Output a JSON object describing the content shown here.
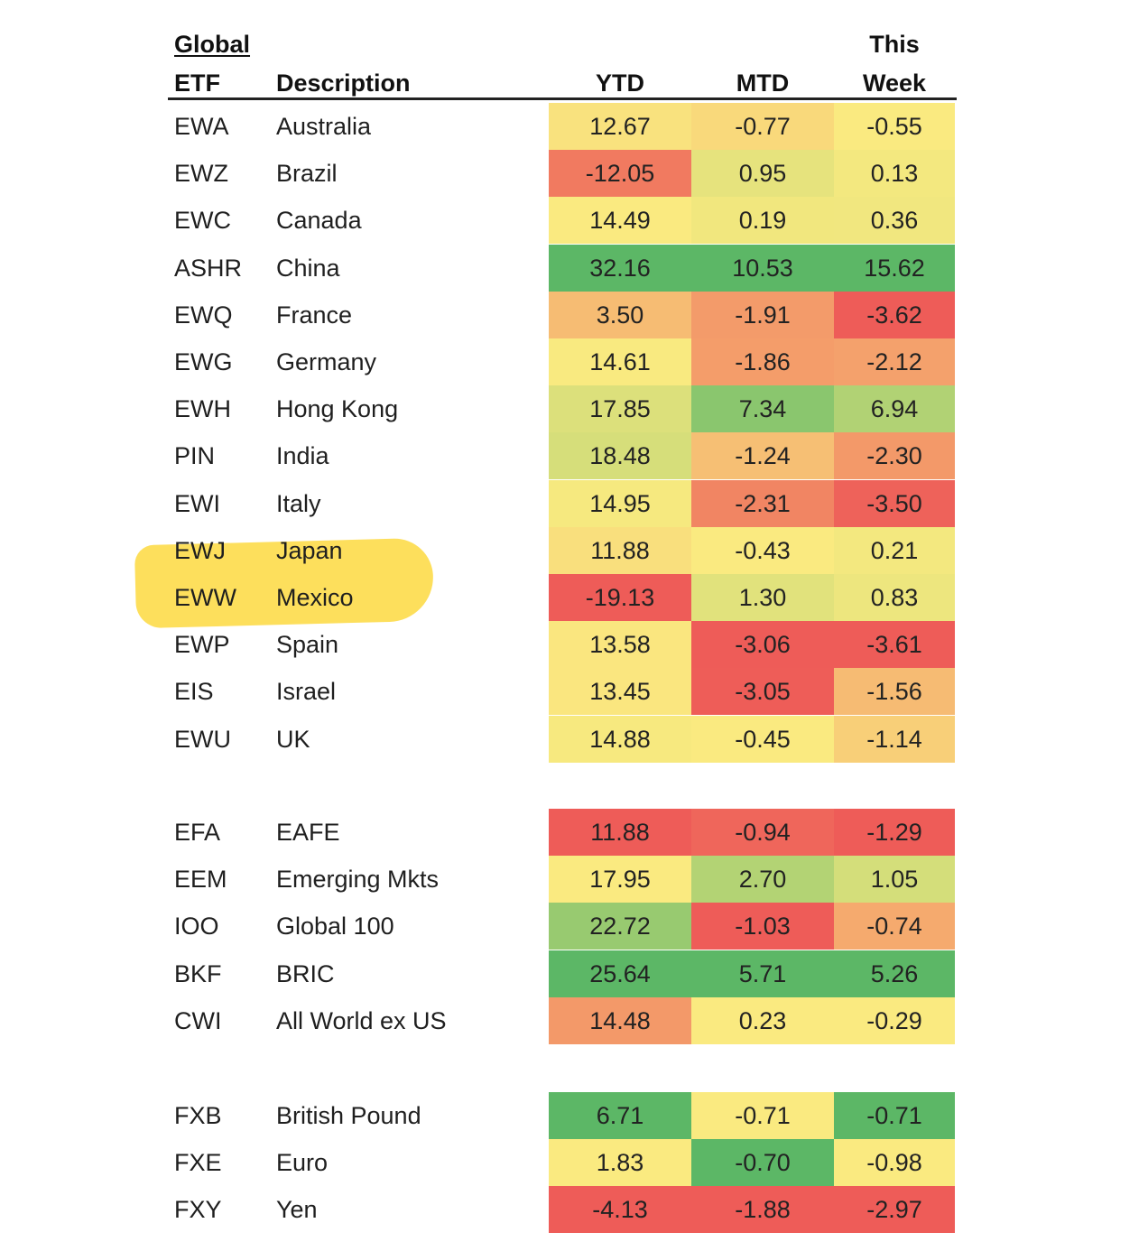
{
  "headers": {
    "group": "Global",
    "etf": "ETF",
    "description": "Description",
    "ytd": "YTD",
    "mtd": "MTD",
    "week_line1": "This",
    "week_line2": "Week"
  },
  "highlighted_ticker": "EWW",
  "highlight_color": "#FDD62E",
  "groups": [
    {
      "rows": [
        {
          "etf": "EWA",
          "description": "Australia",
          "ytd": "12.67",
          "mtd": "-0.77",
          "week": "-0.55"
        },
        {
          "etf": "EWZ",
          "description": "Brazil",
          "ytd": "-12.05",
          "mtd": "0.95",
          "week": "0.13"
        },
        {
          "etf": "EWC",
          "description": "Canada",
          "ytd": "14.49",
          "mtd": "0.19",
          "week": "0.36"
        },
        {
          "etf": "ASHR",
          "description": "China",
          "ytd": "32.16",
          "mtd": "10.53",
          "week": "15.62"
        },
        {
          "etf": "EWQ",
          "description": "France",
          "ytd": "3.50",
          "mtd": "-1.91",
          "week": "-3.62"
        },
        {
          "etf": "EWG",
          "description": "Germany",
          "ytd": "14.61",
          "mtd": "-1.86",
          "week": "-2.12"
        },
        {
          "etf": "EWH",
          "description": "Hong Kong",
          "ytd": "17.85",
          "mtd": "7.34",
          "week": "6.94"
        },
        {
          "etf": "PIN",
          "description": "India",
          "ytd": "18.48",
          "mtd": "-1.24",
          "week": "-2.30"
        },
        {
          "etf": "EWI",
          "description": "Italy",
          "ytd": "14.95",
          "mtd": "-2.31",
          "week": "-3.50"
        },
        {
          "etf": "EWJ",
          "description": "Japan",
          "ytd": "11.88",
          "mtd": "-0.43",
          "week": "0.21"
        },
        {
          "etf": "EWW",
          "description": "Mexico",
          "ytd": "-19.13",
          "mtd": "1.30",
          "week": "0.83"
        },
        {
          "etf": "EWP",
          "description": "Spain",
          "ytd": "13.58",
          "mtd": "-3.06",
          "week": "-3.61"
        },
        {
          "etf": "EIS",
          "description": "Israel",
          "ytd": "13.45",
          "mtd": "-3.05",
          "week": "-1.56"
        },
        {
          "etf": "EWU",
          "description": "UK",
          "ytd": "14.88",
          "mtd": "-0.45",
          "week": "-1.14"
        }
      ]
    },
    {
      "rows": [
        {
          "etf": "EFA",
          "description": "EAFE",
          "ytd": "11.88",
          "mtd": "-0.94",
          "week": "-1.29"
        },
        {
          "etf": "EEM",
          "description": "Emerging Mkts",
          "ytd": "17.95",
          "mtd": "2.70",
          "week": "1.05"
        },
        {
          "etf": "IOO",
          "description": "Global 100",
          "ytd": "22.72",
          "mtd": "-1.03",
          "week": "-0.74"
        },
        {
          "etf": "BKF",
          "description": "BRIC",
          "ytd": "25.64",
          "mtd": "5.71",
          "week": "5.26"
        },
        {
          "etf": "CWI",
          "description": "All World ex US",
          "ytd": "14.48",
          "mtd": "0.23",
          "week": "-0.29"
        }
      ]
    },
    {
      "rows": [
        {
          "etf": "FXB",
          "description": "British Pound",
          "ytd": "6.71",
          "mtd": "-0.71",
          "week": "-0.71"
        },
        {
          "etf": "FXE",
          "description": "Euro",
          "ytd": "1.83",
          "mtd": "-0.70",
          "week": "-0.98"
        },
        {
          "etf": "FXY",
          "description": "Yen",
          "ytd": "-4.13",
          "mtd": "-1.88",
          "week": "-2.97"
        }
      ]
    }
  ]
}
